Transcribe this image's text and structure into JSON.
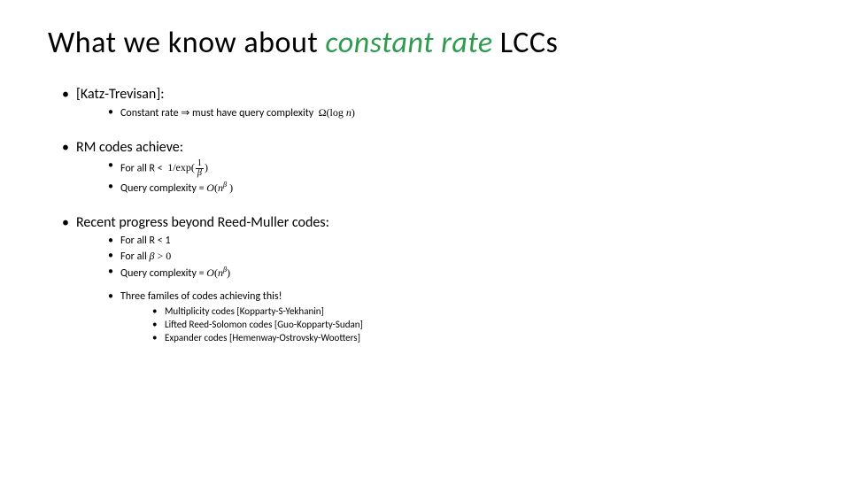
{
  "title": {
    "pre": "What we know about ",
    "emph": "constant rate",
    "post": " LCCs"
  },
  "sections": [
    {
      "heading": "[Katz-Trevisan]:",
      "items": [
        {
          "html": "Constant rate ⇒ must have query complexity &nbsp;<span class='math'>Ω(log <span class='ital'>n</span>)</span>"
        }
      ]
    },
    {
      "heading": "RM codes achieve:",
      "items": [
        {
          "html": "For all R &lt;&nbsp; <span class='math'>1/exp(<span class='frac'><span class='num'>1</span><span class='den'><span class='ital'>β</span></span></span>)</span>"
        },
        {
          "html": "Query complexity = <span class='math'><span class='ital'>O</span>(<span class='ital'>n</span><sup><span class='ital'>β</span></sup>&nbsp;)</span>"
        }
      ]
    },
    {
      "heading": "Recent progress beyond Reed-Muller codes:",
      "items": [
        {
          "html": "For all R &lt; 1"
        },
        {
          "html": "For all <span class='math'><span class='ital'>β</span> &gt; 0</span>"
        },
        {
          "html": "Query complexity = <span class='math'><span class='ital'>O</span>(<span class='ital'>n</span><sup><span class='ital'>β</span></sup>)</span>"
        }
      ],
      "group2": {
        "heading": "Three familes of codes achieving this!",
        "items": [
          "Multiplicity codes [Kopparty-S-Yekhanin]",
          "Lifted Reed-Solomon codes [Guo-Kopparty-Sudan]",
          "Expander codes [Hemenway-Ostrovsky-Wootters]"
        ]
      }
    }
  ]
}
